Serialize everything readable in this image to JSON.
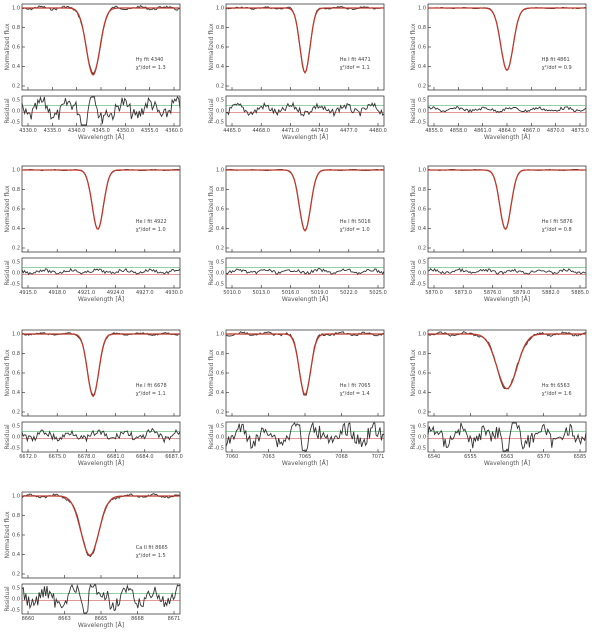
{
  "figure": {
    "ylabel_top": "Normalized flux",
    "ylabel_bottom": "Residual",
    "xlabel": "Wavelength [Å]"
  },
  "chart_data": [
    {
      "type": "line",
      "panel": 1,
      "ticks": [
        "4330.0",
        "4335.0",
        "4340.0",
        "4345.0",
        "4350.0",
        "4355.0",
        "4360.0"
      ],
      "center": 0.45,
      "depth": 0.88,
      "width": 0.06,
      "residual_scale": "large",
      "ann": [
        "Hγ fit 4340",
        "χ²/dof = 1.3"
      ]
    },
    {
      "type": "line",
      "panel": 2,
      "ticks": [
        "4465.0",
        "4468.0",
        "4471.0",
        "4474.0",
        "4477.0",
        "4480.0"
      ],
      "center": 0.5,
      "depth": 0.85,
      "width": 0.045,
      "residual_scale": "medium",
      "ann": [
        "He I fit 4471",
        "χ²/dof = 1.1"
      ]
    },
    {
      "type": "line",
      "panel": 3,
      "ticks": [
        "4855.0",
        "4858.0",
        "4861.0",
        "4864.0",
        "4867.0",
        "4870.0",
        "4873.0"
      ],
      "center": 0.5,
      "depth": 0.82,
      "width": 0.055,
      "residual_scale": "small",
      "ann": [
        "Hβ fit 4861",
        "χ²/dof = 0.9"
      ]
    },
    {
      "type": "line",
      "panel": 4,
      "ticks": [
        "4915.0",
        "4918.0",
        "4921.0",
        "4924.0",
        "4927.0",
        "4930.0"
      ],
      "center": 0.48,
      "depth": 0.78,
      "width": 0.05,
      "residual_scale": "small",
      "ann": [
        "He I fit 4922",
        "χ²/dof = 1.0"
      ]
    },
    {
      "type": "line",
      "panel": 5,
      "ticks": [
        "5010.0",
        "5013.0",
        "5016.0",
        "5019.0",
        "5022.0",
        "5025.0"
      ],
      "center": 0.5,
      "depth": 0.8,
      "width": 0.05,
      "residual_scale": "small",
      "ann": [
        "He I fit 5016",
        "χ²/dof = 1.0"
      ]
    },
    {
      "type": "line",
      "panel": 6,
      "ticks": [
        "5870.0",
        "5873.0",
        "5876.0",
        "5879.0",
        "5882.0",
        "5885.0"
      ],
      "center": 0.49,
      "depth": 0.78,
      "width": 0.05,
      "residual_scale": "small",
      "ann": [
        "He I fit 5876",
        "χ²/dof = 0.8"
      ]
    },
    {
      "type": "line",
      "panel": 7,
      "ticks": [
        "6672.0",
        "6675.0",
        "6678.0",
        "6681.0",
        "6684.0",
        "6687.0"
      ],
      "center": 0.45,
      "depth": 0.82,
      "width": 0.05,
      "residual_scale": "medium",
      "ann": [
        "He I fit 6678",
        "χ²/dof = 1.1"
      ]
    },
    {
      "type": "line",
      "panel": 8,
      "ticks": [
        "7060",
        "7063",
        "7065",
        "7068",
        "7071"
      ],
      "center": 0.5,
      "depth": 0.8,
      "width": 0.05,
      "residual_scale": "large",
      "ann": [
        "He I fit 7065",
        "χ²/dof = 1.4"
      ]
    },
    {
      "type": "line",
      "panel": 9,
      "ticks": [
        "6540",
        "6555",
        "6563",
        "6570",
        "6585"
      ],
      "center": 0.5,
      "depth": 0.72,
      "width": 0.09,
      "residual_scale": "large",
      "ann": [
        "Hα fit 6563",
        "χ²/dof = 1.6"
      ]
    },
    {
      "type": "line",
      "panel": 10,
      "ticks": [
        "8660",
        "8663",
        "8665",
        "8668",
        "8671"
      ],
      "center": 0.43,
      "depth": 0.78,
      "width": 0.08,
      "residual_scale": "large",
      "ann": [
        "Ca II fit 8665",
        "χ²/dof = 1.5"
      ]
    }
  ]
}
